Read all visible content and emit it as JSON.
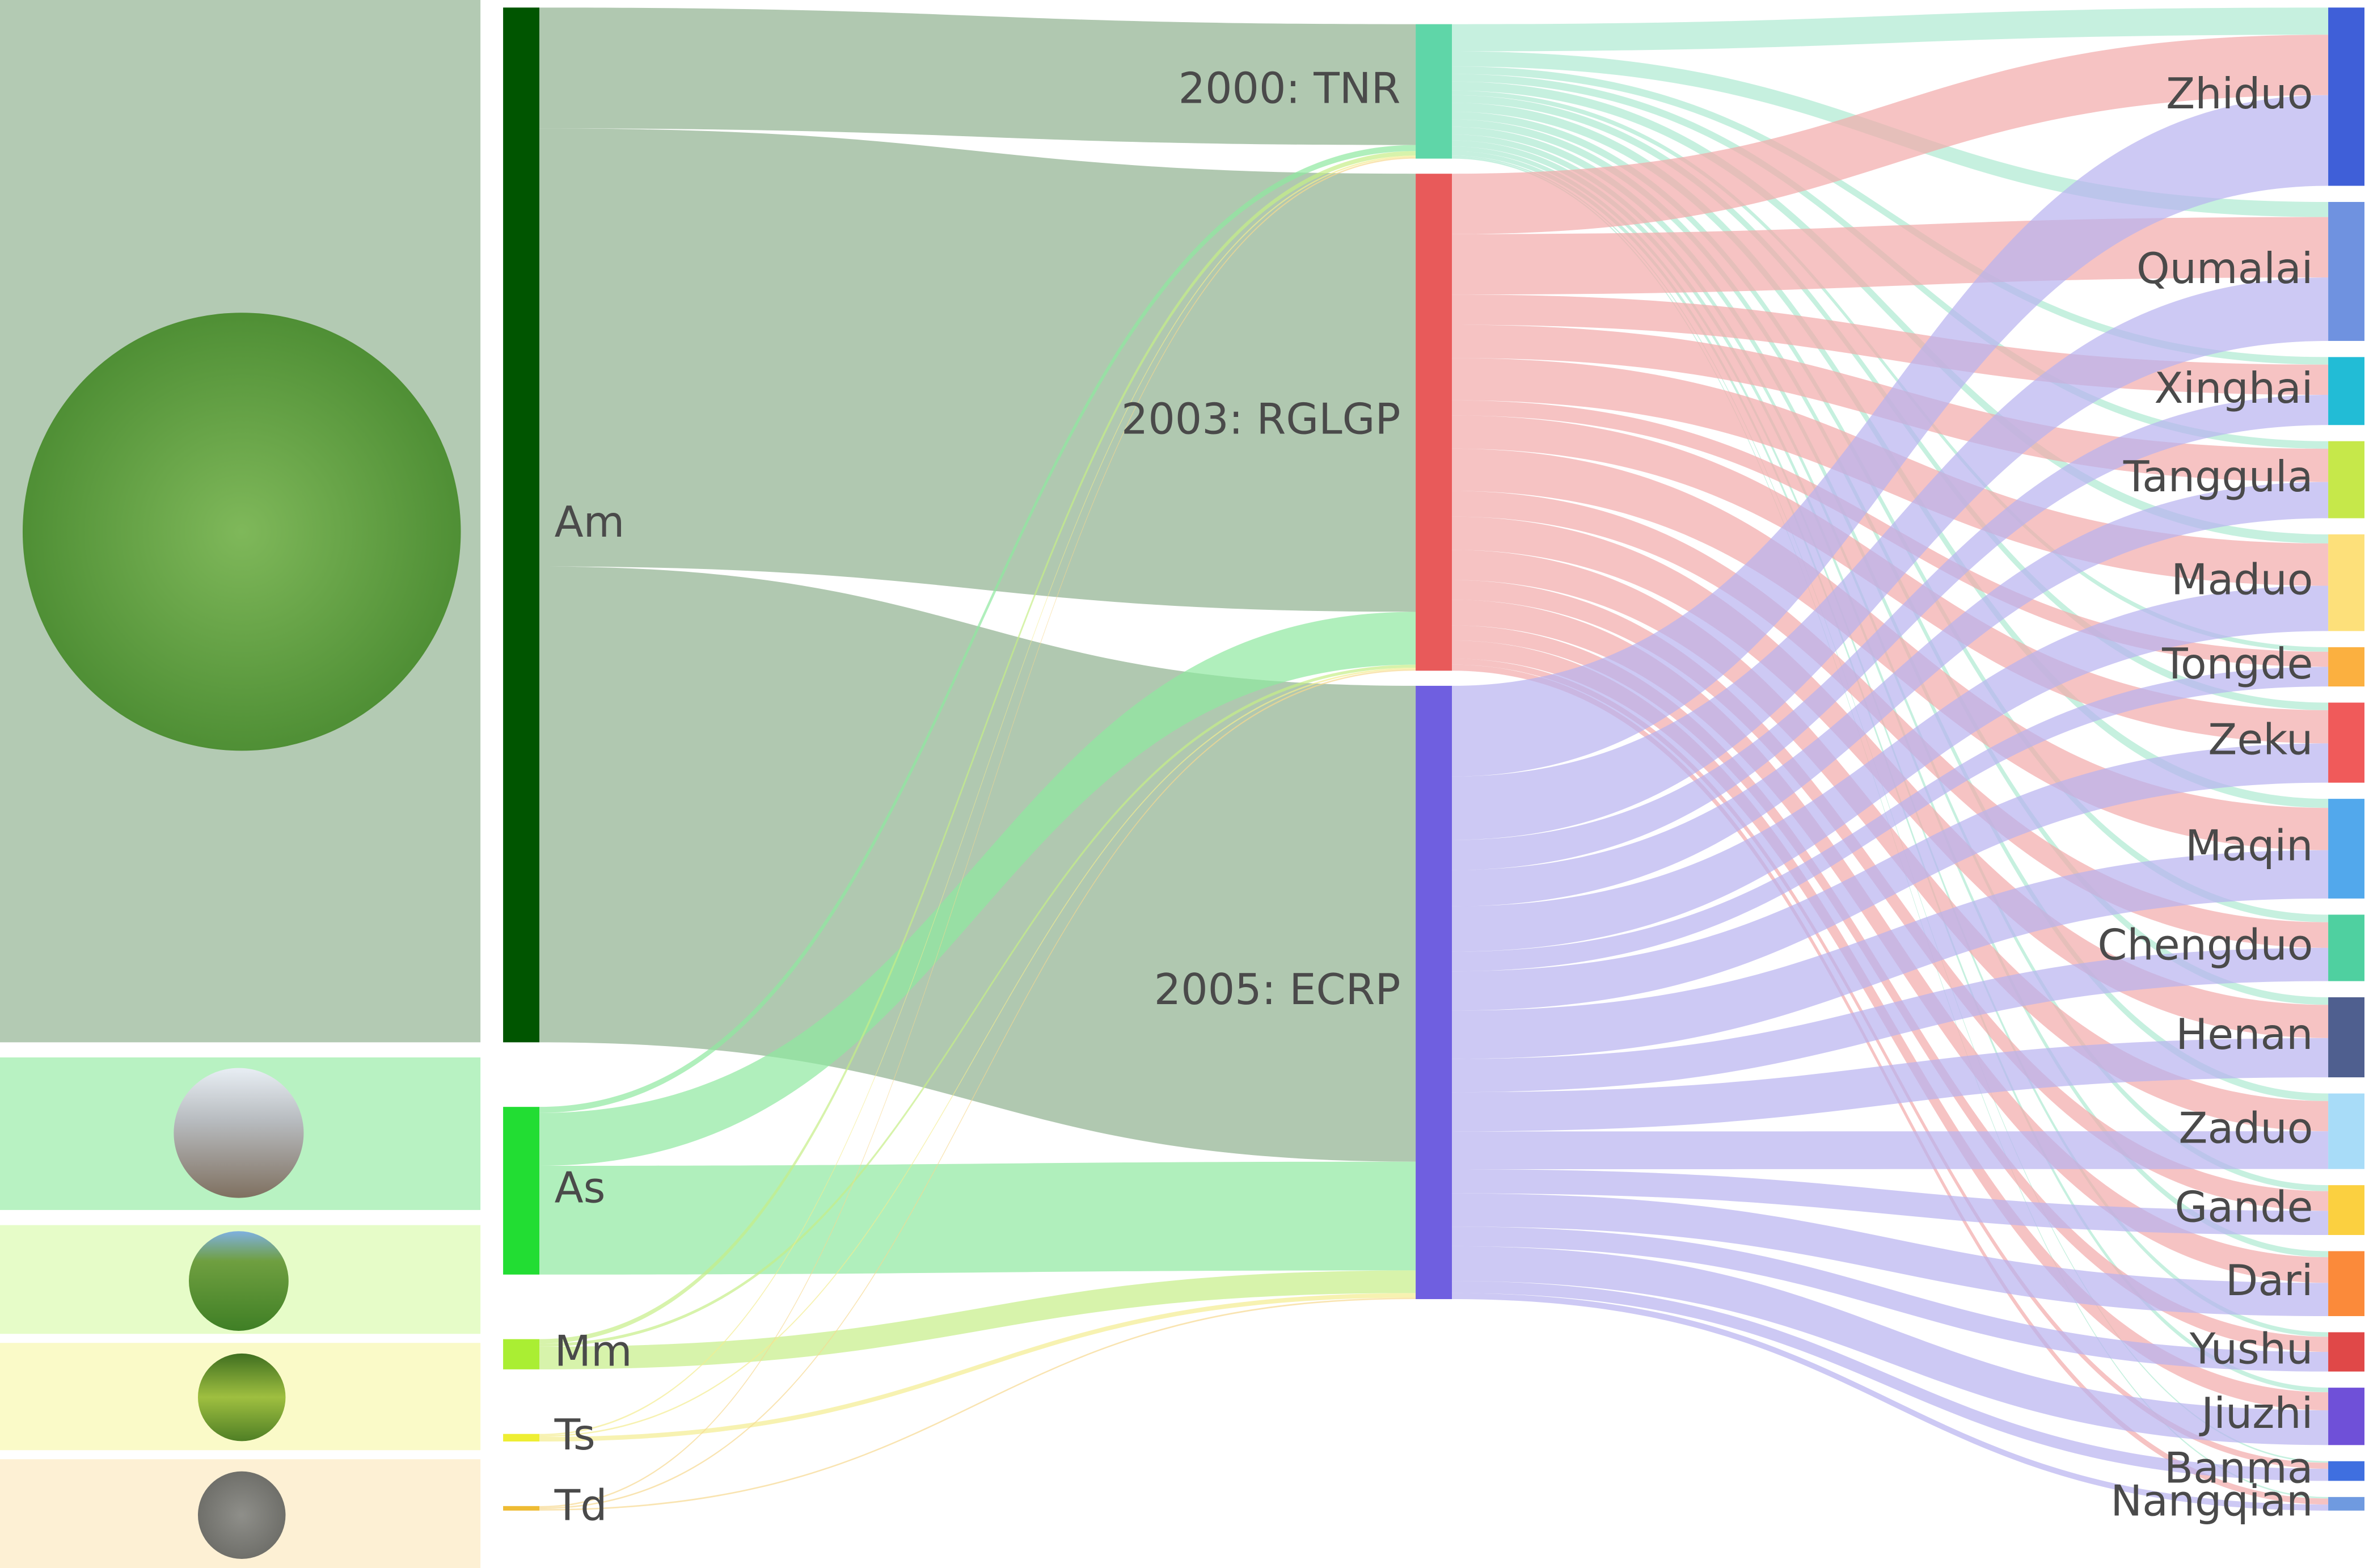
{
  "chart_data": {
    "type": "sankey",
    "nodes": [
      {
        "name": "Am",
        "color": "#005500",
        "link_color": "#8fb08f"
      },
      {
        "name": "As",
        "color": "#22dd33",
        "link_color": "#8fe8a0"
      },
      {
        "name": "Mm",
        "color": "#aaee33",
        "link_color": "#c6ee88"
      },
      {
        "name": "Ts",
        "color": "#eeee33",
        "link_color": "#f4ec90"
      },
      {
        "name": "Td",
        "color": "#eebb33",
        "link_color": "#f6d890"
      },
      {
        "name": "2000: TNR",
        "color": "#5fd6a8",
        "link_color": "#aeead2"
      },
      {
        "name": "2003: RGLGP",
        "color": "#e85a5a",
        "link_color": "#f2aaaa"
      },
      {
        "name": "2005: ECRP",
        "color": "#6f5fe0",
        "link_color": "#b8b2f0"
      },
      {
        "name": "Zhiduo",
        "color": "#3f5fd8"
      },
      {
        "name": "Qumalai",
        "color": "#6f92e0"
      },
      {
        "name": "Xinghai",
        "color": "#22bcd6"
      },
      {
        "name": "Tanggula",
        "color": "#c6e84a"
      },
      {
        "name": "Maduo",
        "color": "#fde07a"
      },
      {
        "name": "Tongde",
        "color": "#fbb040"
      },
      {
        "name": "Zeku",
        "color": "#f05a5a"
      },
      {
        "name": "Maqin",
        "color": "#52a8ec"
      },
      {
        "name": "Chengduo",
        "color": "#4fd0a0"
      },
      {
        "name": "Henan",
        "color": "#4f5f8f"
      },
      {
        "name": "Zaduo",
        "color": "#a8dcf8"
      },
      {
        "name": "Gande",
        "color": "#fbd040"
      },
      {
        "name": "Dari",
        "color": "#fb8a3a"
      },
      {
        "name": "Yushu",
        "color": "#e04848"
      },
      {
        "name": "Jiuzhi",
        "color": "#6f50d8"
      },
      {
        "name": "Banma",
        "color": "#3f6fe0"
      },
      {
        "name": "Nangqian",
        "color": "#6f9ae0"
      }
    ],
    "links": [
      {
        "source": "Am",
        "target": "2000: TNR",
        "value": 80
      },
      {
        "source": "Am",
        "target": "2003: RGLGP",
        "value": 290
      },
      {
        "source": "Am",
        "target": "2005: ECRP",
        "value": 315
      },
      {
        "source": "As",
        "target": "2000: TNR",
        "value": 4
      },
      {
        "source": "As",
        "target": "2003: RGLGP",
        "value": 35
      },
      {
        "source": "As",
        "target": "2005: ECRP",
        "value": 72
      },
      {
        "source": "Mm",
        "target": "2000: TNR",
        "value": 3
      },
      {
        "source": "Mm",
        "target": "2003: RGLGP",
        "value": 2
      },
      {
        "source": "Mm",
        "target": "2005: ECRP",
        "value": 15
      },
      {
        "source": "Ts",
        "target": "2000: TNR",
        "value": 1
      },
      {
        "source": "Ts",
        "target": "2003: RGLGP",
        "value": 1
      },
      {
        "source": "Ts",
        "target": "2005: ECRP",
        "value": 3
      },
      {
        "source": "Td",
        "target": "2000: TNR",
        "value": 1
      },
      {
        "source": "Td",
        "target": "2003: RGLGP",
        "value": 1
      },
      {
        "source": "Td",
        "target": "2005: ECRP",
        "value": 1
      },
      {
        "source": "2000: TNR",
        "target": "Zhiduo",
        "value": 18
      },
      {
        "source": "2000: TNR",
        "target": "Qumalai",
        "value": 10
      },
      {
        "source": "2000: TNR",
        "target": "Xinghai",
        "value": 5
      },
      {
        "source": "2000: TNR",
        "target": "Tanggula",
        "value": 5
      },
      {
        "source": "2000: TNR",
        "target": "Maduo",
        "value": 6
      },
      {
        "source": "2000: TNR",
        "target": "Tongde",
        "value": 3
      },
      {
        "source": "2000: TNR",
        "target": "Zeku",
        "value": 5
      },
      {
        "source": "2000: TNR",
        "target": "Maqin",
        "value": 6
      },
      {
        "source": "2000: TNR",
        "target": "Chengduo",
        "value": 5
      },
      {
        "source": "2000: TNR",
        "target": "Henan",
        "value": 5
      },
      {
        "source": "2000: TNR",
        "target": "Zaduo",
        "value": 5
      },
      {
        "source": "2000: TNR",
        "target": "Gande",
        "value": 4
      },
      {
        "source": "2000: TNR",
        "target": "Dari",
        "value": 4
      },
      {
        "source": "2000: TNR",
        "target": "Yushu",
        "value": 3
      },
      {
        "source": "2000: TNR",
        "target": "Jiuzhi",
        "value": 3
      },
      {
        "source": "2000: TNR",
        "target": "Banma",
        "value": 1
      },
      {
        "source": "2000: TNR",
        "target": "Nangqian",
        "value": 1
      },
      {
        "source": "2003: RGLGP",
        "target": "Zhiduo",
        "value": 40
      },
      {
        "source": "2003: RGLGP",
        "target": "Qumalai",
        "value": 40
      },
      {
        "source": "2003: RGLGP",
        "target": "Xinghai",
        "value": 20
      },
      {
        "source": "2003: RGLGP",
        "target": "Tanggula",
        "value": 22
      },
      {
        "source": "2003: RGLGP",
        "target": "Maduo",
        "value": 28
      },
      {
        "source": "2003: RGLGP",
        "target": "Tongde",
        "value": 10
      },
      {
        "source": "2003: RGLGP",
        "target": "Zeku",
        "value": 22
      },
      {
        "source": "2003: RGLGP",
        "target": "Maqin",
        "value": 28
      },
      {
        "source": "2003: RGLGP",
        "target": "Chengduo",
        "value": 17
      },
      {
        "source": "2003: RGLGP",
        "target": "Henan",
        "value": 22
      },
      {
        "source": "2003: RGLGP",
        "target": "Zaduo",
        "value": 20
      },
      {
        "source": "2003: RGLGP",
        "target": "Gande",
        "value": 13
      },
      {
        "source": "2003: RGLGP",
        "target": "Dari",
        "value": 17
      },
      {
        "source": "2003: RGLGP",
        "target": "Yushu",
        "value": 10
      },
      {
        "source": "2003: RGLGP",
        "target": "Jiuzhi",
        "value": 12
      },
      {
        "source": "2003: RGLGP",
        "target": "Banma",
        "value": 4
      },
      {
        "source": "2003: RGLGP",
        "target": "Nangqian",
        "value": 4
      },
      {
        "source": "2005: ECRP",
        "target": "Zhiduo",
        "value": 60
      },
      {
        "source": "2005: ECRP",
        "target": "Qumalai",
        "value": 42
      },
      {
        "source": "2005: ECRP",
        "target": "Xinghai",
        "value": 20
      },
      {
        "source": "2005: ECRP",
        "target": "Tanggula",
        "value": 24
      },
      {
        "source": "2005: ECRP",
        "target": "Maduo",
        "value": 30
      },
      {
        "source": "2005: ECRP",
        "target": "Tongde",
        "value": 13
      },
      {
        "source": "2005: ECRP",
        "target": "Zeku",
        "value": 26
      },
      {
        "source": "2005: ECRP",
        "target": "Maqin",
        "value": 32
      },
      {
        "source": "2005: ECRP",
        "target": "Chengduo",
        "value": 22
      },
      {
        "source": "2005: ECRP",
        "target": "Henan",
        "value": 26
      },
      {
        "source": "2005: ECRP",
        "target": "Zaduo",
        "value": 25
      },
      {
        "source": "2005: ECRP",
        "target": "Gande",
        "value": 16
      },
      {
        "source": "2005: ECRP",
        "target": "Dari",
        "value": 22
      },
      {
        "source": "2005: ECRP",
        "target": "Yushu",
        "value": 13
      },
      {
        "source": "2005: ECRP",
        "target": "Jiuzhi",
        "value": 23
      },
      {
        "source": "2005: ECRP",
        "target": "Banma",
        "value": 8
      },
      {
        "source": "2005: ECRP",
        "target": "Nangqian",
        "value": 4
      }
    ]
  }
}
